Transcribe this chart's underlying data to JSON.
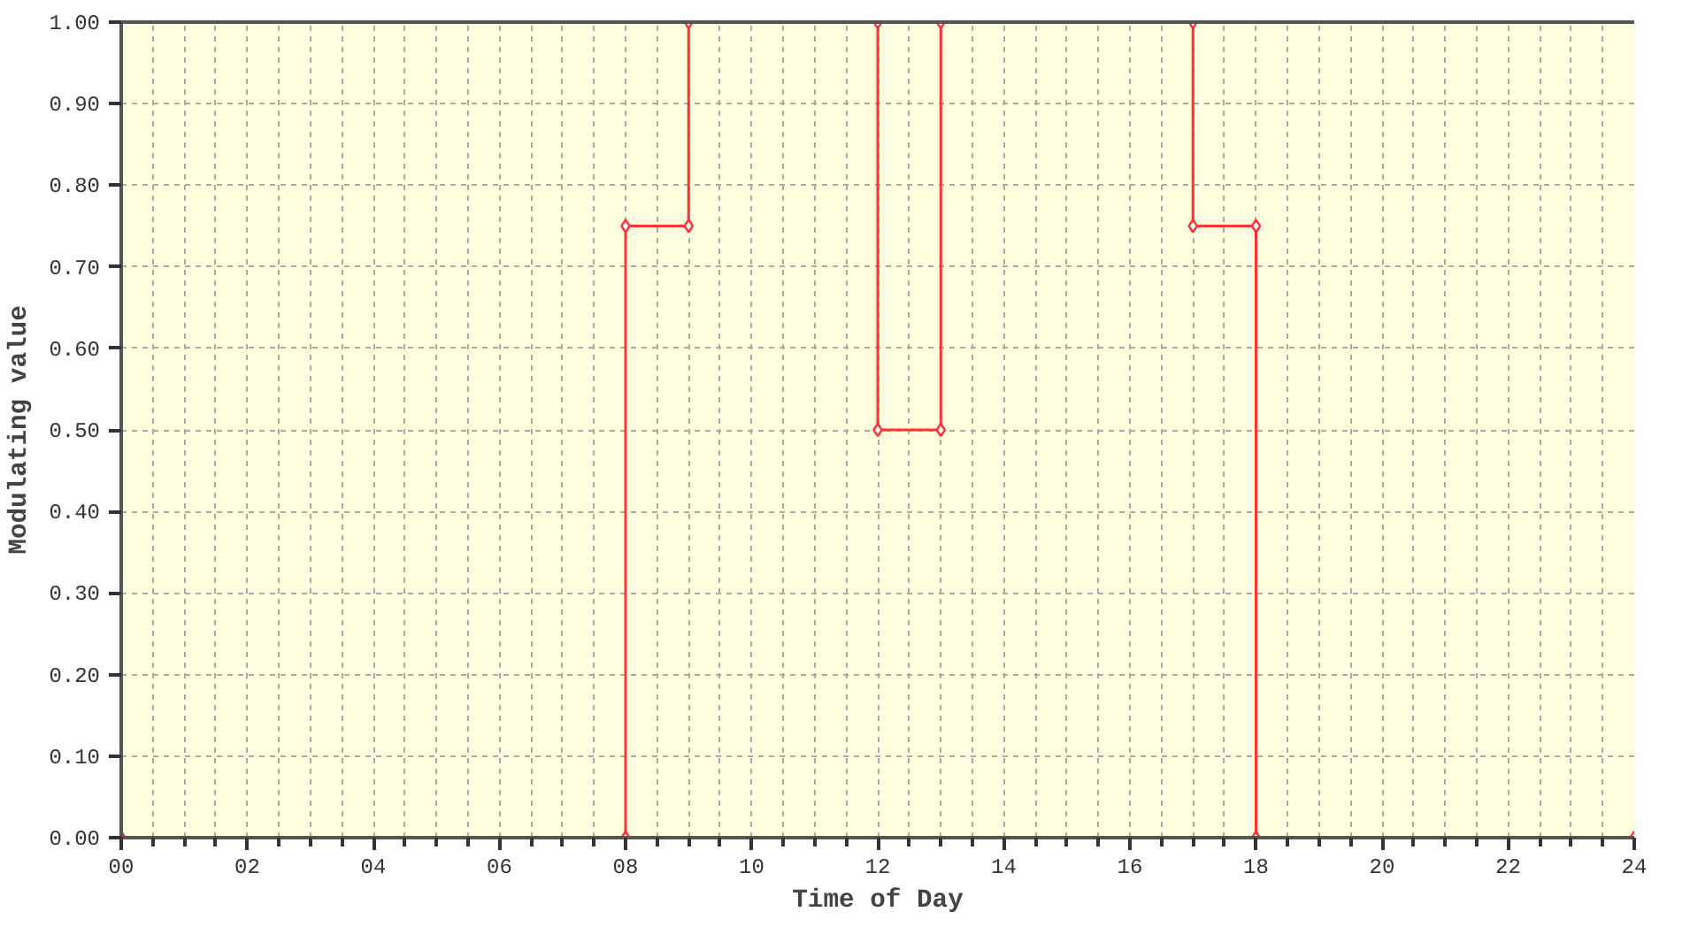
{
  "chart_data": {
    "type": "line",
    "xlabel": "Time of Day",
    "ylabel": "Modulating value",
    "x": [
      0,
      8,
      8,
      9,
      9,
      12,
      12,
      13,
      13,
      17,
      17,
      18,
      18,
      24
    ],
    "series": [
      {
        "color": "#ff3333",
        "values": [
          0,
          0,
          0.75,
          0.75,
          1,
          1,
          0.5,
          0.5,
          1,
          1,
          0.75,
          0.75,
          0,
          0
        ]
      }
    ],
    "xlim": [
      0,
      24
    ],
    "ylim": [
      0,
      1
    ],
    "xticks": [
      {
        "value": 0,
        "label": "00"
      },
      {
        "value": 2,
        "label": "02"
      },
      {
        "value": 4,
        "label": "04"
      },
      {
        "value": 6,
        "label": "06"
      },
      {
        "value": 8,
        "label": "08"
      },
      10,
      12,
      14,
      16,
      18,
      20,
      22,
      24
    ],
    "yticks": [
      {
        "value": 0,
        "label": "0.00"
      },
      {
        "value": 0.1,
        "label": "0.10"
      },
      {
        "value": 0.2,
        "label": "0.20"
      },
      {
        "value": 0.3,
        "label": "0.30"
      },
      {
        "value": 0.4,
        "label": "0.40"
      },
      {
        "value": 0.5,
        "label": "0.50"
      },
      {
        "value": 0.6,
        "label": "0.60"
      },
      {
        "value": 0.7,
        "label": "0.70"
      },
      {
        "value": 0.8,
        "label": "0.80"
      },
      {
        "value": 0.9,
        "label": "0.90"
      },
      {
        "value": 1,
        "label": "1.00"
      }
    ],
    "grid": true,
    "marker": "diamond",
    "line_style": "solid"
  }
}
